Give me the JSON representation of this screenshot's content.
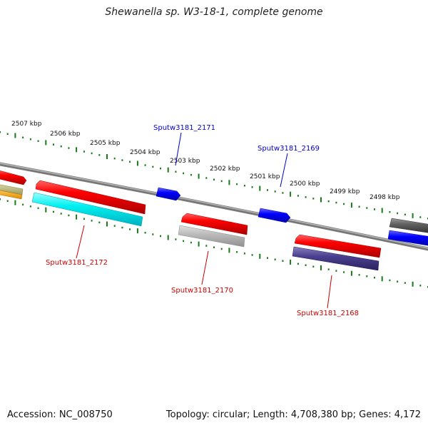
{
  "title": "Shewanella sp. W3-18-1, complete genome",
  "footer": {
    "accession": "Accession: NC_008750",
    "summary": "Topology: circular; Length: 4,708,380 bp; Genes: 4,172"
  },
  "colors": {
    "backbone": "#8a8a8a",
    "tick": "#1a7a1a",
    "label_red": "#cc0000",
    "label_blue": "#0000cc"
  },
  "ticks": [
    {
      "label": "2507 kbp"
    },
    {
      "label": "2506 kbp"
    },
    {
      "label": "2505 kbp"
    },
    {
      "label": "2504 kbp"
    },
    {
      "label": "2503 kbp"
    },
    {
      "label": "2502 kbp"
    },
    {
      "label": "2501 kbp"
    },
    {
      "label": "2500 kbp"
    },
    {
      "label": "2499 kbp"
    },
    {
      "label": "2498 kbp"
    }
  ],
  "genes": [
    {
      "name": "Sputw3181_2171",
      "color": "#0000cc",
      "kind": "label"
    },
    {
      "name": "Sputw3181_2169",
      "color": "#0000cc",
      "kind": "label"
    },
    {
      "name": "Sputw3181_2172",
      "color": "#cc0000",
      "kind": "label"
    },
    {
      "name": "Sputw3181_2170",
      "color": "#cc0000",
      "kind": "label"
    },
    {
      "name": "Sputw3181_2168",
      "color": "#cc0000",
      "kind": "label"
    }
  ]
}
